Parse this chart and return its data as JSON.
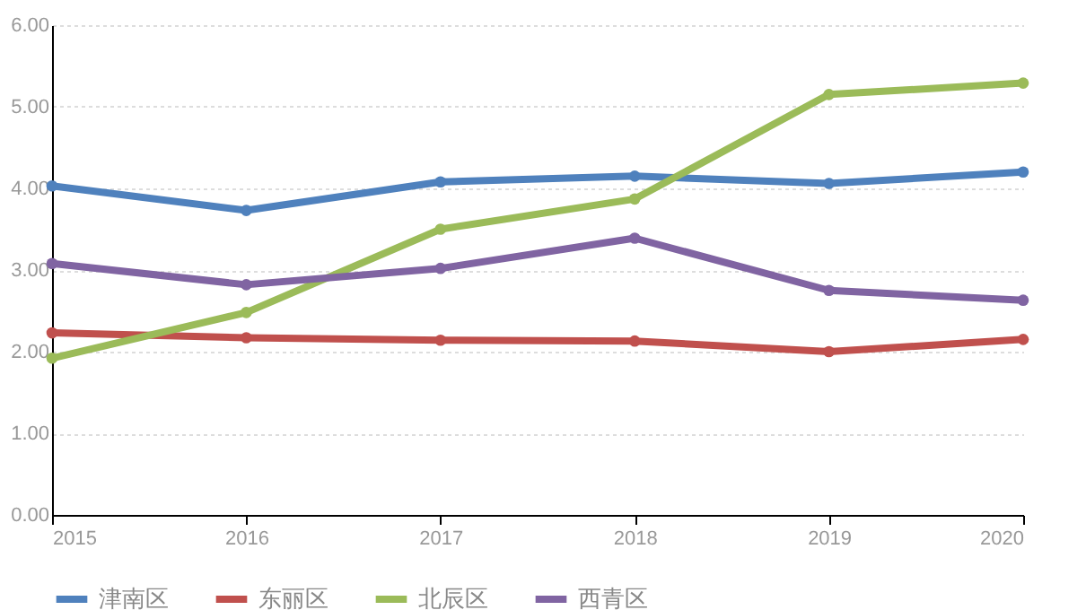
{
  "chart_data": {
    "type": "line",
    "categories": [
      "2015",
      "2016",
      "2017",
      "2018",
      "2019",
      "2020"
    ],
    "series": [
      {
        "name": "津南区",
        "color": "#4f81bd",
        "values": [
          4.03,
          3.73,
          4.08,
          4.15,
          4.06,
          4.2
        ]
      },
      {
        "name": "东丽区",
        "color": "#c0504d",
        "values": [
          2.23,
          2.17,
          2.14,
          2.13,
          2.0,
          2.15
        ]
      },
      {
        "name": "北辰区",
        "color": "#9bbb59",
        "values": [
          1.92,
          2.48,
          3.5,
          3.87,
          5.15,
          5.29
        ]
      },
      {
        "name": "西青区",
        "color": "#8064a2",
        "values": [
          3.08,
          2.82,
          3.02,
          3.39,
          2.75,
          2.63
        ]
      }
    ],
    "ylim": [
      0,
      6
    ],
    "yticks": [
      {
        "value": 0,
        "label": "0.00"
      },
      {
        "value": 1,
        "label": "1.00"
      },
      {
        "value": 2,
        "label": "2.00"
      },
      {
        "value": 3,
        "label": "3.00"
      },
      {
        "value": 4,
        "label": "4.00"
      },
      {
        "value": 5,
        "label": "5.00"
      },
      {
        "value": 6,
        "label": "6.00"
      }
    ],
    "grid": "y",
    "legend": "bottom",
    "marker": "circle",
    "line_style": "solid"
  }
}
